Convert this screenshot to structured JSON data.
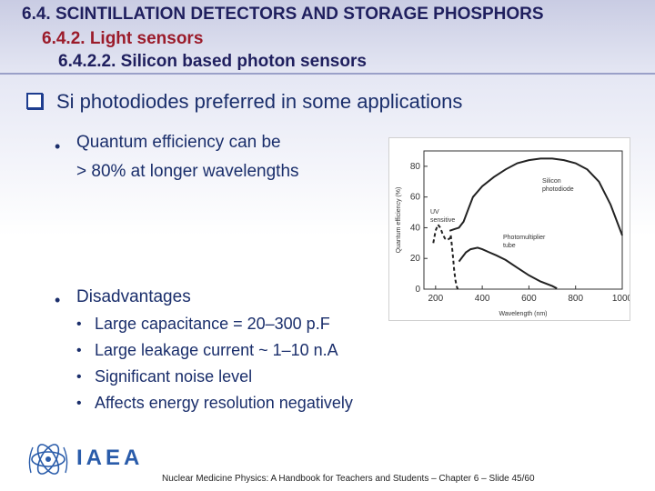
{
  "header": {
    "title": "6.4. SCINTILLATION DETECTORS AND STORAGE PHOSPHORS",
    "subtitle": "6.4.2. Light sensors",
    "subsubtitle": "6.4.2.2. Silicon based photon sensors"
  },
  "content": {
    "main_point": "Si photodiodes preferred in some applications",
    "qe_line1": "Quantum efficiency can be",
    "qe_line2": "> 80% at longer wavelengths",
    "disadvantages_label": "Disadvantages",
    "disadvantages": [
      "Large capacitance = 20–300 p.F",
      "Large leakage current ~ 1–10 n.A",
      "Significant noise level",
      "Affects energy resolution negatively"
    ]
  },
  "chart_data": {
    "type": "line",
    "xlabel": "Wavelength (nm)",
    "ylabel": "Quantum efficiency (%)",
    "xlim": [
      150,
      1000
    ],
    "ylim": [
      0,
      90
    ],
    "xticks": [
      200,
      400,
      600,
      800,
      1000
    ],
    "yticks": [
      0,
      20,
      40,
      60,
      80
    ],
    "series": [
      {
        "name": "Silicon photodiode",
        "style": "solid",
        "x": [
          260,
          280,
          300,
          320,
          340,
          360,
          400,
          450,
          500,
          550,
          600,
          650,
          700,
          750,
          800,
          850,
          900,
          950,
          1000
        ],
        "y": [
          38,
          39,
          40,
          44,
          52,
          60,
          67,
          73,
          78,
          82,
          84,
          85,
          85,
          84,
          82,
          78,
          70,
          55,
          35
        ]
      },
      {
        "name": "UV sensitive",
        "style": "dashed",
        "x": [
          190,
          200,
          210,
          220,
          230,
          240,
          250,
          260,
          270
        ],
        "y": [
          30,
          38,
          42,
          40,
          36,
          33,
          32,
          33,
          35
        ]
      },
      {
        "name": "Photomultiplier tube",
        "style": "solid",
        "x": [
          300,
          330,
          350,
          380,
          400,
          430,
          460,
          500,
          550,
          600,
          650,
          700,
          720
        ],
        "y": [
          18,
          24,
          26,
          27,
          26,
          24,
          22,
          19,
          14,
          9,
          5,
          2,
          0.5
        ]
      },
      {
        "name": "",
        "style": "dashed",
        "x": [
          265,
          270,
          275,
          280,
          285,
          290,
          295
        ],
        "y": [
          35,
          28,
          20,
          12,
          6,
          2,
          0
        ]
      }
    ],
    "annotations": [
      {
        "text": "Silicon photodiode",
        "lines": [
          "Silicon",
          "photodiode"
        ]
      },
      {
        "text": "UV sensitive",
        "lines": [
          "UV",
          "sensitive"
        ]
      },
      {
        "text": "Photomultiplier tube",
        "lines": [
          "Photomultiplier",
          "tube"
        ]
      }
    ]
  },
  "footer": {
    "logo_text": "IAEA",
    "citation": "Nuclear Medicine Physics: A Handbook for Teachers and Students – Chapter 6 – Slide 45/60"
  }
}
